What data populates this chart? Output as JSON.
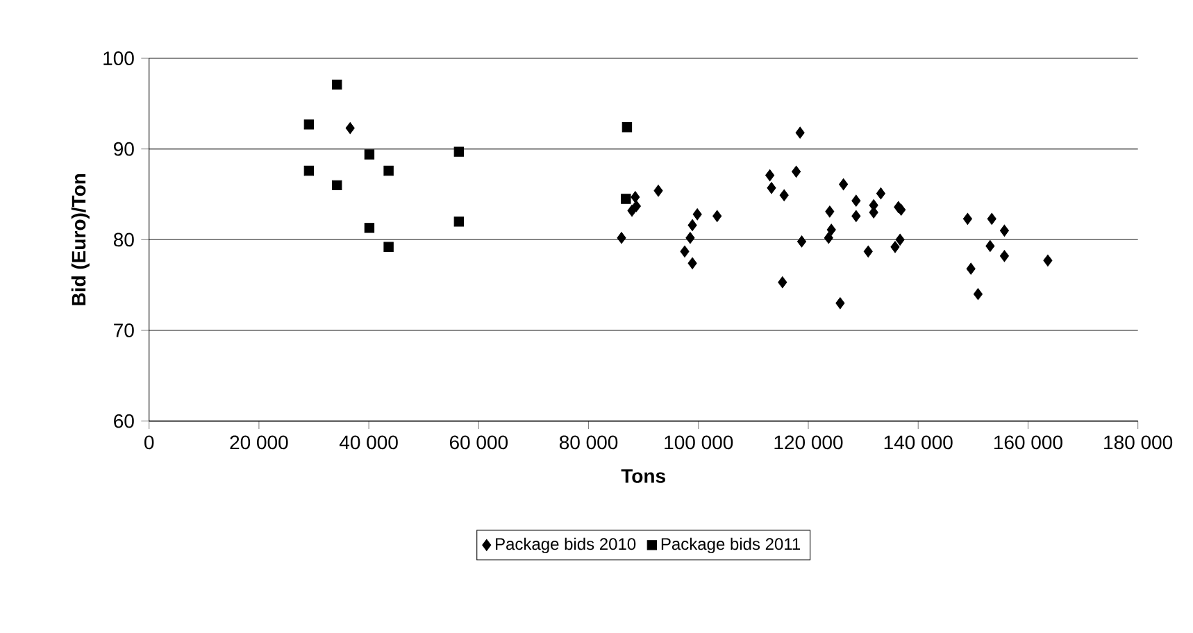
{
  "chart_data": {
    "type": "scatter",
    "xlabel": "Tons",
    "ylabel": "Bid (Euro)/Ton",
    "xlim": [
      0,
      180000
    ],
    "ylim": [
      60,
      100
    ],
    "xticks": [
      0,
      {
        "value": 20000,
        "label": "20 000"
      },
      {
        "value": 40000,
        "label": "40 000"
      },
      {
        "value": 60000,
        "label": "60 000"
      },
      {
        "value": 80000,
        "label": "80 000"
      },
      {
        "value": 100000,
        "label": "100 000"
      },
      {
        "value": 120000,
        "label": "120 000"
      },
      {
        "value": 140000,
        "label": "140 000"
      },
      {
        "value": 160000,
        "label": "160 000"
      },
      {
        "value": 180000,
        "label": "180 000"
      }
    ],
    "yticks": [
      60,
      70,
      80,
      90,
      100
    ],
    "grid": "y",
    "legend": "bottom",
    "series": [
      {
        "name": "Package bids 2010",
        "color": "#000000",
        "marker": "diamond",
        "x": [
          36600,
          88500,
          88700,
          87900,
          86000,
          92700,
          99800,
          98900,
          98500,
          97500,
          98900,
          103400,
          113000,
          113300,
          115600,
          115300,
          117800,
          118500,
          118800,
          125800,
          123900,
          124200,
          123700,
          126400,
          128700,
          128700,
          130900,
          131900,
          131900,
          133200,
          136400,
          136900,
          136700,
          135800,
          149000,
          153400,
          155700,
          153100,
          155700,
          149600,
          150900,
          163600
        ],
        "values": [
          92.3,
          84.7,
          83.7,
          83.2,
          80.2,
          85.4,
          82.8,
          81.6,
          80.2,
          78.7,
          77.4,
          82.6,
          87.1,
          85.7,
          84.9,
          75.3,
          87.5,
          91.8,
          79.8,
          73.0,
          83.1,
          81.1,
          80.2,
          86.1,
          84.3,
          82.6,
          78.7,
          83.8,
          83.0,
          85.1,
          83.6,
          83.3,
          80.0,
          79.2,
          82.3,
          82.3,
          81.0,
          79.3,
          78.2,
          76.8,
          74.0,
          77.7
        ]
      },
      {
        "name": "Package bids 2011",
        "color": "#000000",
        "marker": "square",
        "x": [
          34200,
          29100,
          29100,
          34200,
          40100,
          43600,
          40100,
          43600,
          56400,
          56400,
          86800,
          87000
        ],
        "values": [
          97.1,
          92.7,
          87.6,
          86.0,
          89.4,
          87.6,
          81.3,
          79.2,
          89.7,
          82.0,
          84.5,
          92.4
        ]
      }
    ]
  }
}
